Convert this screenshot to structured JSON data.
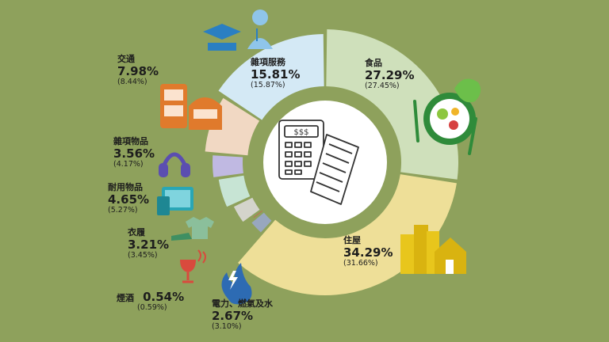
{
  "chart_data": {
    "type": "pie",
    "style": "donut",
    "categories": [
      "食品",
      "住屋",
      "電力、燃氣及水",
      "煙酒",
      "衣履",
      "耐用物品",
      "雜項物品",
      "交通",
      "雜項服務"
    ],
    "values": [
      27.29,
      34.29,
      2.67,
      0.54,
      3.21,
      4.65,
      3.56,
      7.98,
      15.81
    ],
    "value_labels": [
      "27.29%",
      "34.29%",
      "2.67%",
      "0.54%",
      "3.21%",
      "4.65%",
      "3.56%",
      "7.98%",
      "15.81%"
    ],
    "previous_labels": [
      "(27.45%)",
      "(31.66%)",
      "(3.10%)",
      "(0.59%)",
      "(3.45%)",
      "(5.27%)",
      "(4.17%)",
      "(8.44%)",
      "(15.87%)"
    ],
    "colors": [
      "#cfe0bb",
      "#eedf98",
      "#98a7be",
      "#df4c4e",
      "#d4d4cc",
      "#c7e4d4",
      "#c0b9e2",
      "#f1d8c3",
      "#d4e9f5"
    ],
    "icons": [
      "salad-bowl-icon",
      "buildings-icon",
      "flame-icon",
      "wine-glass-icon",
      "clothing-icon",
      "appliance-icon",
      "headphones-icon",
      "bus-train-icon",
      "graduate-doctor-icon"
    ],
    "center_icon": "calculator-receipt-icon"
  }
}
